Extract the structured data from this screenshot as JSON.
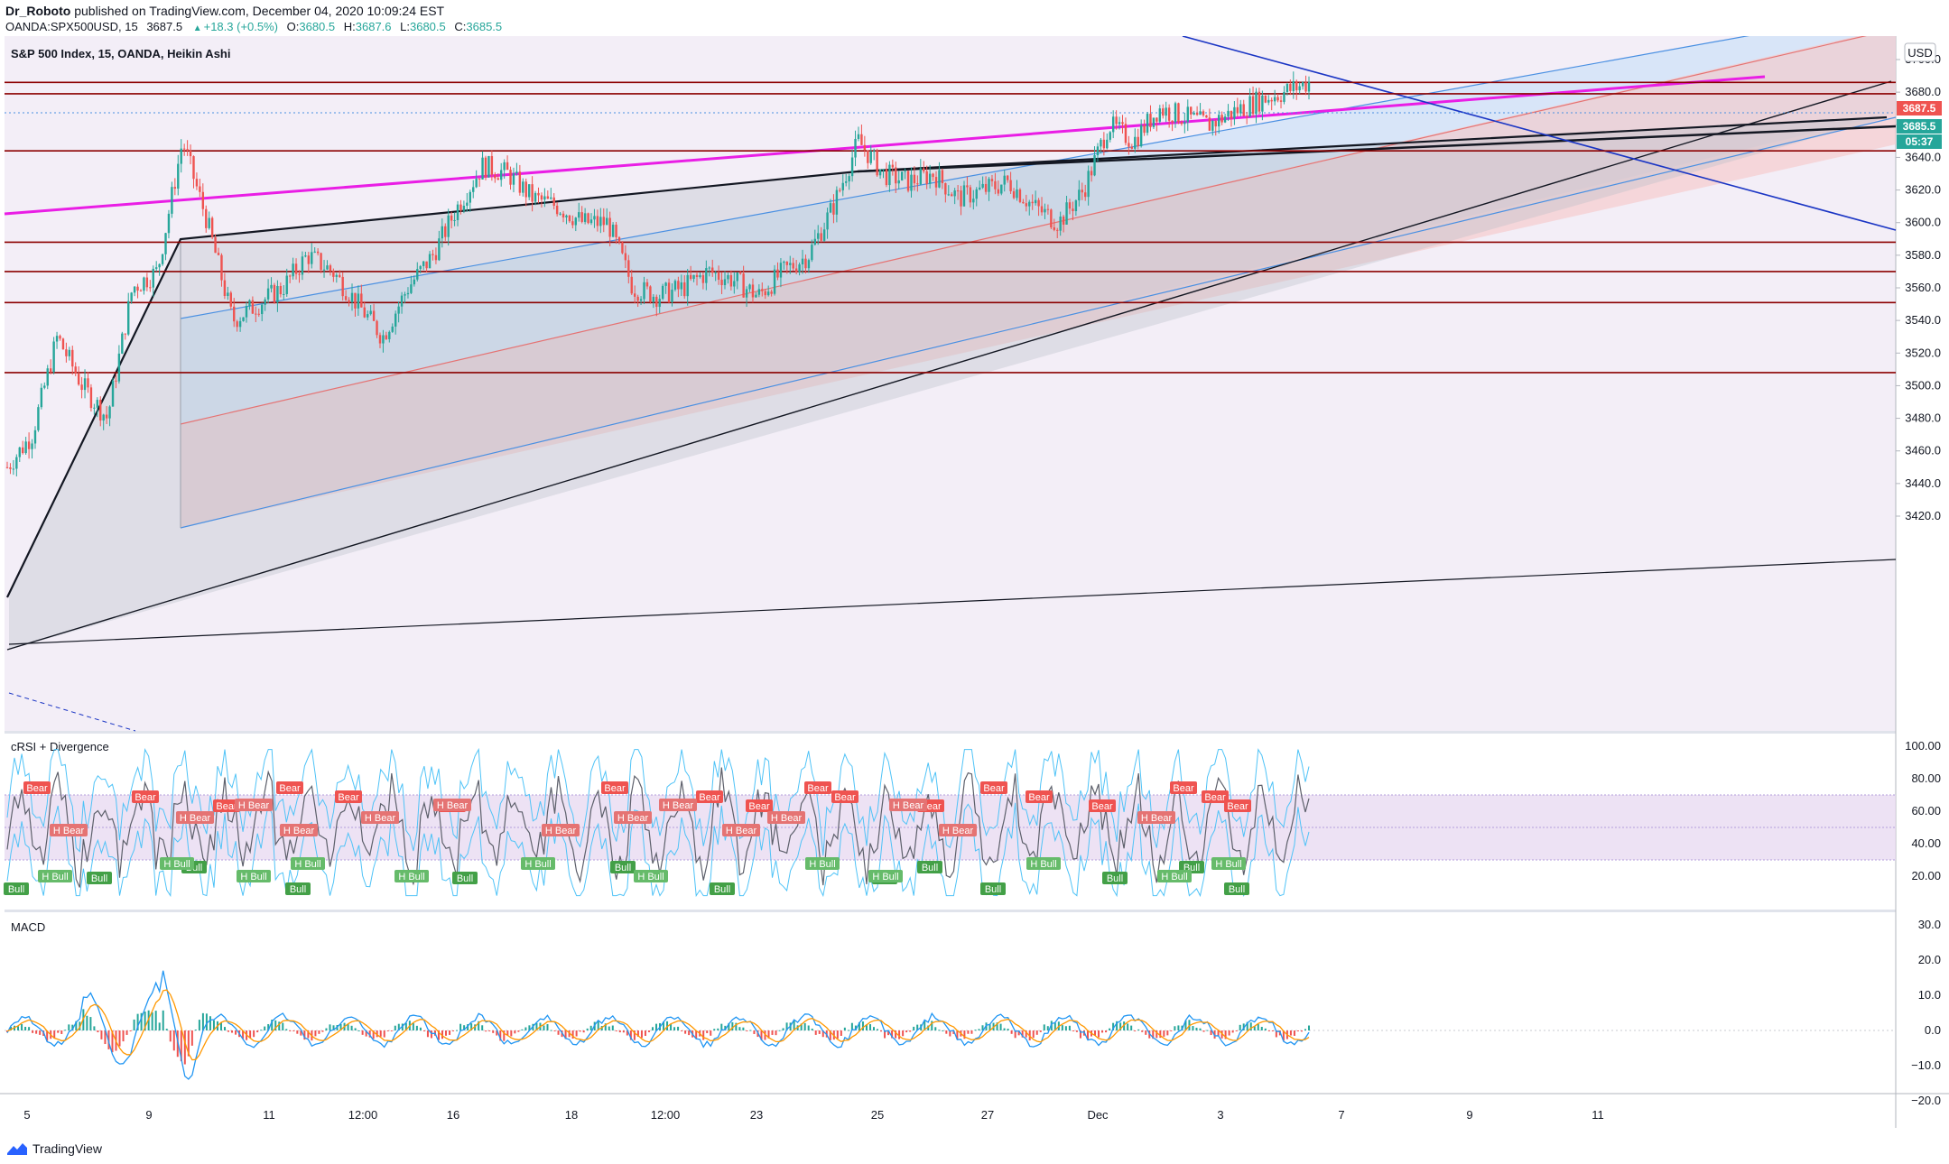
{
  "header": {
    "author": "Dr_Roboto",
    "published_text": "published on TradingView.com, December 04, 2020 10:09:24 EST",
    "symbol": "OANDA:SPX500USD, 15",
    "last": "3687.5",
    "change": "+18.3 (+0.5%)",
    "o_label": "O:",
    "o": "3680.5",
    "h_label": "H:",
    "h": "3687.6",
    "l_label": "L:",
    "l": "3680.5",
    "c_label": "C:",
    "c": "3685.5"
  },
  "main_pane": {
    "title": "S&P 500 Index, 15, OANDA, Heikin Ashi",
    "currency_button": "USD",
    "price_badges": [
      {
        "text": "3687.5",
        "color": "#ef5350"
      },
      {
        "text": "3685.5",
        "color": "#26a69a"
      },
      {
        "text": "05:37",
        "color": "#26a69a"
      }
    ],
    "horizontal_levels": [
      3686,
      3679,
      3644,
      3588,
      3570,
      3551,
      3508
    ]
  },
  "crsi_pane": {
    "title": "cRSI + Divergence",
    "bear_label": "Bear",
    "bull_label": "Bull",
    "hbear_label": "H Bear",
    "hbull_label": "H Bull"
  },
  "macd_pane": {
    "title": "MACD"
  },
  "footer": {
    "brand": "TradingView"
  },
  "colors": {
    "bull": "#26a69a",
    "bear": "#ef5350",
    "level": "#8b0000",
    "magenta": "#e91ee5",
    "blue_line": "#1a35c4",
    "channel_blue": "#4a90e2"
  },
  "chart_data": [
    {
      "type": "candlestick",
      "title": "S&P 500 Index, 15, OANDA, Heikin Ashi",
      "ylabel": "USD",
      "ylim": [
        3410,
        3710
      ],
      "y_ticks": [
        "3700.0",
        "3680.0",
        "3660.0",
        "3640.0",
        "3620.0",
        "3600.0",
        "3580.0",
        "3560.0",
        "3540.0",
        "3520.0",
        "3500.0",
        "3480.0",
        "3460.0",
        "3440.0",
        "3420.0"
      ],
      "x_ticks": [
        "5",
        "9",
        "11",
        "12:00",
        "16",
        "18",
        "12:00",
        "23",
        "25",
        "27",
        "Dec",
        "3",
        "7",
        "9",
        "11"
      ],
      "series": [
        {
          "values": [
            3450,
            3470,
            3530,
            3500,
            3480,
            3560,
            3570,
            3650,
            3600,
            3540,
            3550,
            3560,
            3580,
            3570,
            3550,
            3530,
            3560,
            3580,
            3610,
            3635,
            3630,
            3615,
            3610,
            3600,
            3600,
            3560,
            3555,
            3560,
            3570,
            3565,
            3555,
            3570,
            3580,
            3610,
            3650,
            3630,
            3625,
            3630,
            3615,
            3620,
            3625,
            3610,
            3600,
            3620,
            3660,
            3650,
            3670,
            3665,
            3660,
            3668,
            3675,
            3680,
            3686
          ]
        }
      ]
    },
    {
      "type": "line",
      "title": "cRSI + Divergence",
      "ylim": [
        0,
        100
      ],
      "y_ticks": [
        "100.00",
        "80.00",
        "60.00",
        "40.00",
        "20.00"
      ]
    },
    {
      "type": "bar",
      "title": "MACD",
      "ylim": [
        -22,
        32
      ],
      "y_ticks": [
        "30.0",
        "20.0",
        "10.0",
        "0.0",
        "−10.0",
        "−20.0"
      ]
    }
  ]
}
